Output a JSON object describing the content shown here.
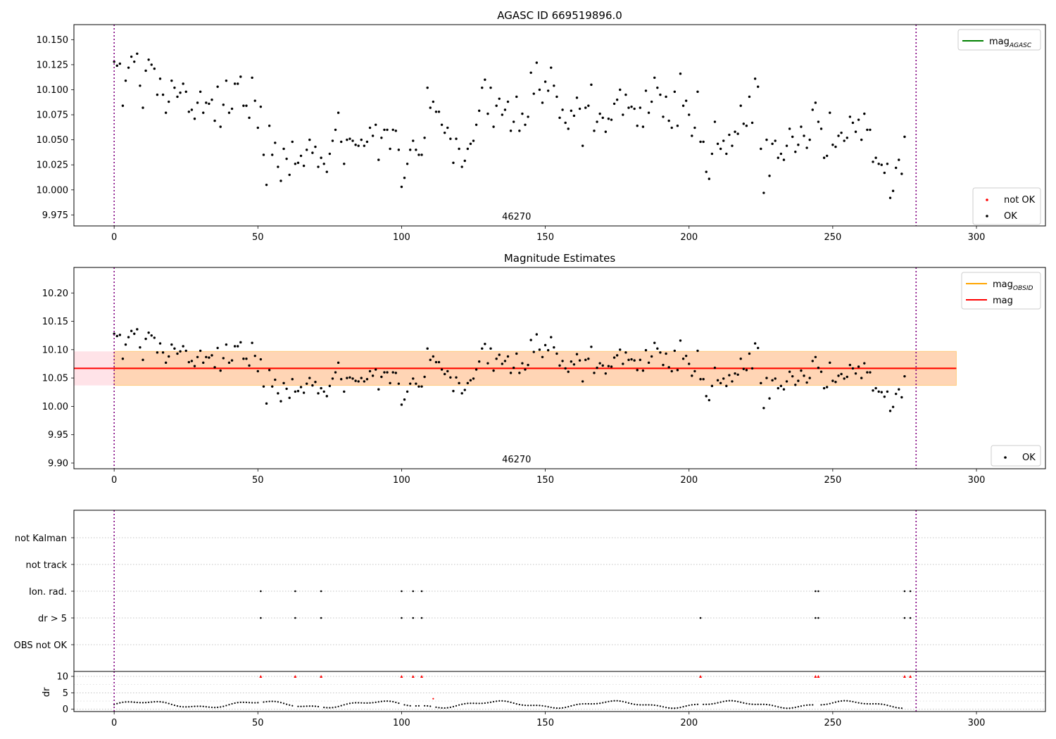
{
  "chart_data": [
    {
      "type": "scatter",
      "title": "AGASC ID 669519896.0",
      "xlim": [
        -14,
        324
      ],
      "ylim": [
        9.964,
        10.165
      ],
      "xticks": [
        0,
        50,
        100,
        150,
        200,
        250,
        300
      ],
      "yticks": [
        9.975,
        10.0,
        10.025,
        10.05,
        10.075,
        10.1,
        10.125,
        10.15
      ],
      "ytick_decimals": 3,
      "obsid_label": "46270",
      "obsid_label_x": 140,
      "vlines": [
        0,
        279
      ],
      "legend_lines": [
        {
          "label": "mag",
          "sub": "AGASC",
          "color": "#008000"
        }
      ],
      "legend_points": [
        {
          "label": "not OK",
          "color": "#ff0000"
        },
        {
          "label": "OK",
          "color": "#000000"
        }
      ],
      "series": [
        {
          "name": "OK",
          "color": "#000000",
          "x_start": 0,
          "values": [
            10.128,
            10.124,
            10.126,
            10.084,
            10.109,
            10.122,
            10.133,
            10.128,
            10.136,
            10.104,
            10.082,
            10.119,
            10.13,
            10.125,
            10.121,
            10.095,
            10.111,
            10.095,
            10.077,
            10.088,
            10.109,
            10.102,
            10.093,
            10.097,
            10.106,
            10.098,
            10.078,
            10.08,
            10.071,
            10.087,
            10.098,
            10.077,
            10.087,
            10.086,
            10.09,
            10.069,
            10.103,
            10.063,
            10.085,
            10.109,
            10.077,
            10.081,
            10.106,
            10.106,
            10.113,
            10.084,
            10.084,
            10.072,
            10.112,
            10.089,
            10.062,
            10.083,
            10.035,
            10.005,
            10.064,
            10.035,
            10.047,
            10.023,
            10.009,
            10.041,
            10.031,
            10.015,
            10.048,
            10.026,
            10.027,
            10.034,
            10.024,
            10.04,
            10.05,
            10.037,
            10.043,
            10.023,
            10.032,
            10.026,
            10.018,
            10.036,
            10.049,
            10.06,
            10.077,
            10.048,
            10.026,
            10.05,
            10.051,
            10.049,
            10.045,
            10.044,
            10.05,
            10.044,
            10.048,
            10.062,
            10.054,
            10.065,
            10.03,
            10.052,
            10.06,
            10.06,
            10.041,
            10.06,
            10.059,
            10.04,
            10.003,
            10.012,
            10.026,
            10.04,
            10.049,
            10.04,
            10.035,
            10.035,
            10.052,
            10.102,
            10.082,
            10.088,
            10.078,
            10.078,
            10.065,
            10.057,
            10.062,
            10.051,
            10.027,
            10.051,
            10.041,
            10.023,
            10.029,
            10.041,
            10.046,
            10.049,
            10.065,
            10.079,
            10.102,
            10.11,
            10.076,
            10.102,
            10.063,
            10.084,
            10.091,
            10.075,
            10.08,
            10.088,
            10.059,
            10.068,
            10.093,
            10.059,
            10.076,
            10.065,
            10.073,
            10.117,
            10.096,
            10.127,
            10.1,
            10.087,
            10.108,
            10.099,
            10.122,
            10.104,
            10.093,
            10.072,
            10.08,
            10.067,
            10.061,
            10.079,
            10.074,
            10.092,
            10.081,
            10.044,
            10.082,
            10.084,
            10.105,
            10.059,
            10.068,
            10.076,
            10.072,
            10.058,
            10.071,
            10.07,
            10.086,
            10.09,
            10.1,
            10.075,
            10.095,
            10.082,
            10.083,
            10.081,
            10.064,
            10.082,
            10.063,
            10.099,
            10.077,
            10.088,
            10.112,
            10.102,
            10.095,
            10.073,
            10.093,
            10.069,
            10.062,
            10.098,
            10.064,
            10.116,
            10.084,
            10.089,
            10.075,
            10.054,
            10.062,
            10.098,
            10.048,
            10.048,
            10.018,
            10.011,
            10.036,
            10.068,
            10.046,
            10.041,
            10.049,
            10.036,
            10.055,
            10.044,
            10.058,
            10.056,
            10.084,
            10.066,
            10.064,
            10.093,
            10.067,
            10.111,
            10.103,
            10.041,
            9.997,
            10.05,
            10.014,
            10.046,
            10.049,
            10.032,
            10.036,
            10.03,
            10.044,
            10.061,
            10.053,
            10.038,
            10.045,
            10.063,
            10.054,
            10.042,
            10.05,
            10.08,
            10.087,
            10.068,
            10.061,
            10.032,
            10.034,
            10.077,
            10.045,
            10.043,
            10.054,
            10.057,
            10.049,
            10.052,
            10.073,
            10.067,
            10.058,
            10.07,
            10.05,
            10.076,
            10.06,
            10.06,
            10.028,
            10.032,
            10.026,
            10.025,
            10.017,
            10.026,
            9.992,
            9.999,
            10.022,
            10.03,
            10.016,
            10.053
          ]
        }
      ]
    },
    {
      "type": "scatter",
      "title": "Magnitude Estimates",
      "xlim": [
        -14,
        324
      ],
      "ylim": [
        9.89,
        10.245
      ],
      "xticks": [
        0,
        50,
        100,
        150,
        200,
        250,
        300
      ],
      "yticks": [
        9.9,
        9.95,
        10.0,
        10.05,
        10.1,
        10.15,
        10.2
      ],
      "ytick_decimals": 2,
      "obsid_label": "46270",
      "obsid_label_x": 140,
      "vlines": [
        0,
        279
      ],
      "mag_line": 10.067,
      "mag_obsid_line": 10.067,
      "band_outer": {
        "x": [
          -14,
          293
        ],
        "y": [
          10.037,
          10.097
        ],
        "color": "#ffc0cb"
      },
      "band_inner": {
        "x": [
          0,
          293
        ],
        "y": [
          10.037,
          10.097
        ],
        "color": "#ffa500"
      },
      "legend_lines": [
        {
          "label": "mag",
          "sub": "OBSID",
          "color": "#ffa500"
        },
        {
          "label": "mag",
          "sub": "",
          "color": "#ff0000"
        }
      ],
      "legend_points": [
        {
          "label": "OK",
          "color": "#000000"
        }
      ]
    },
    {
      "type": "scatter",
      "categories": [
        "OBS not OK",
        "dr > 5",
        "Ion. rad.",
        "not track",
        "not Kalman"
      ],
      "flags": {
        "Ion. rad.": [
          51,
          63,
          72,
          100,
          104,
          107,
          244,
          245,
          275,
          277
        ],
        "dr > 5": [
          51,
          63,
          72,
          100,
          104,
          107,
          204,
          244,
          245,
          275,
          277
        ]
      },
      "xlim": [
        -14,
        324
      ],
      "vlines": [
        0,
        279
      ]
    },
    {
      "type": "scatter",
      "ylabel": "dr",
      "xlim": [
        -14,
        324
      ],
      "ylim": [
        -0.7,
        11.5
      ],
      "xticks": [
        0,
        50,
        100,
        150,
        200,
        250,
        300
      ],
      "yticks": [
        0,
        5,
        10
      ],
      "vlines": [
        0,
        279
      ],
      "clipped_value": 10,
      "clipped_x": [
        51,
        63,
        72,
        100,
        104,
        107,
        204,
        244,
        245,
        275,
        277
      ],
      "outlier": {
        "x": 111,
        "y": 3.2
      }
    }
  ]
}
